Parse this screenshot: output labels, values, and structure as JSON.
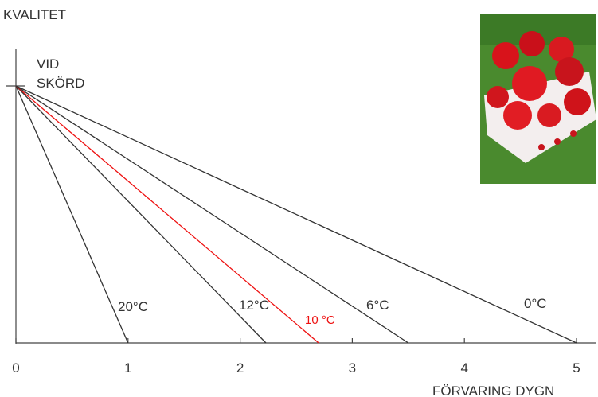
{
  "chart_data": {
    "type": "line",
    "ylabel": "KVALITET",
    "xlabel": "FÖRVARING DYGN",
    "annotation": [
      "VID",
      "SKÖRD"
    ],
    "xlim": [
      0,
      5
    ],
    "ylim": [
      0,
      1
    ],
    "xticks": [
      0,
      1,
      2,
      3,
      4,
      5
    ],
    "series": [
      {
        "name": "20°C",
        "color": "#333333",
        "x": [
          0,
          1
        ],
        "values": [
          1,
          0
        ]
      },
      {
        "name": "12°C",
        "color": "#333333",
        "x": [
          0,
          2.23
        ],
        "values": [
          1,
          0
        ]
      },
      {
        "name": "10 °C",
        "color": "#ee1111",
        "x": [
          0,
          2.7
        ],
        "values": [
          1,
          0
        ]
      },
      {
        "name": "6°C",
        "color": "#333333",
        "x": [
          0,
          3.5
        ],
        "values": [
          1,
          0
        ]
      },
      {
        "name": "0°C",
        "color": "#333333",
        "x": [
          0,
          5
        ],
        "values": [
          1,
          0
        ]
      }
    ]
  }
}
